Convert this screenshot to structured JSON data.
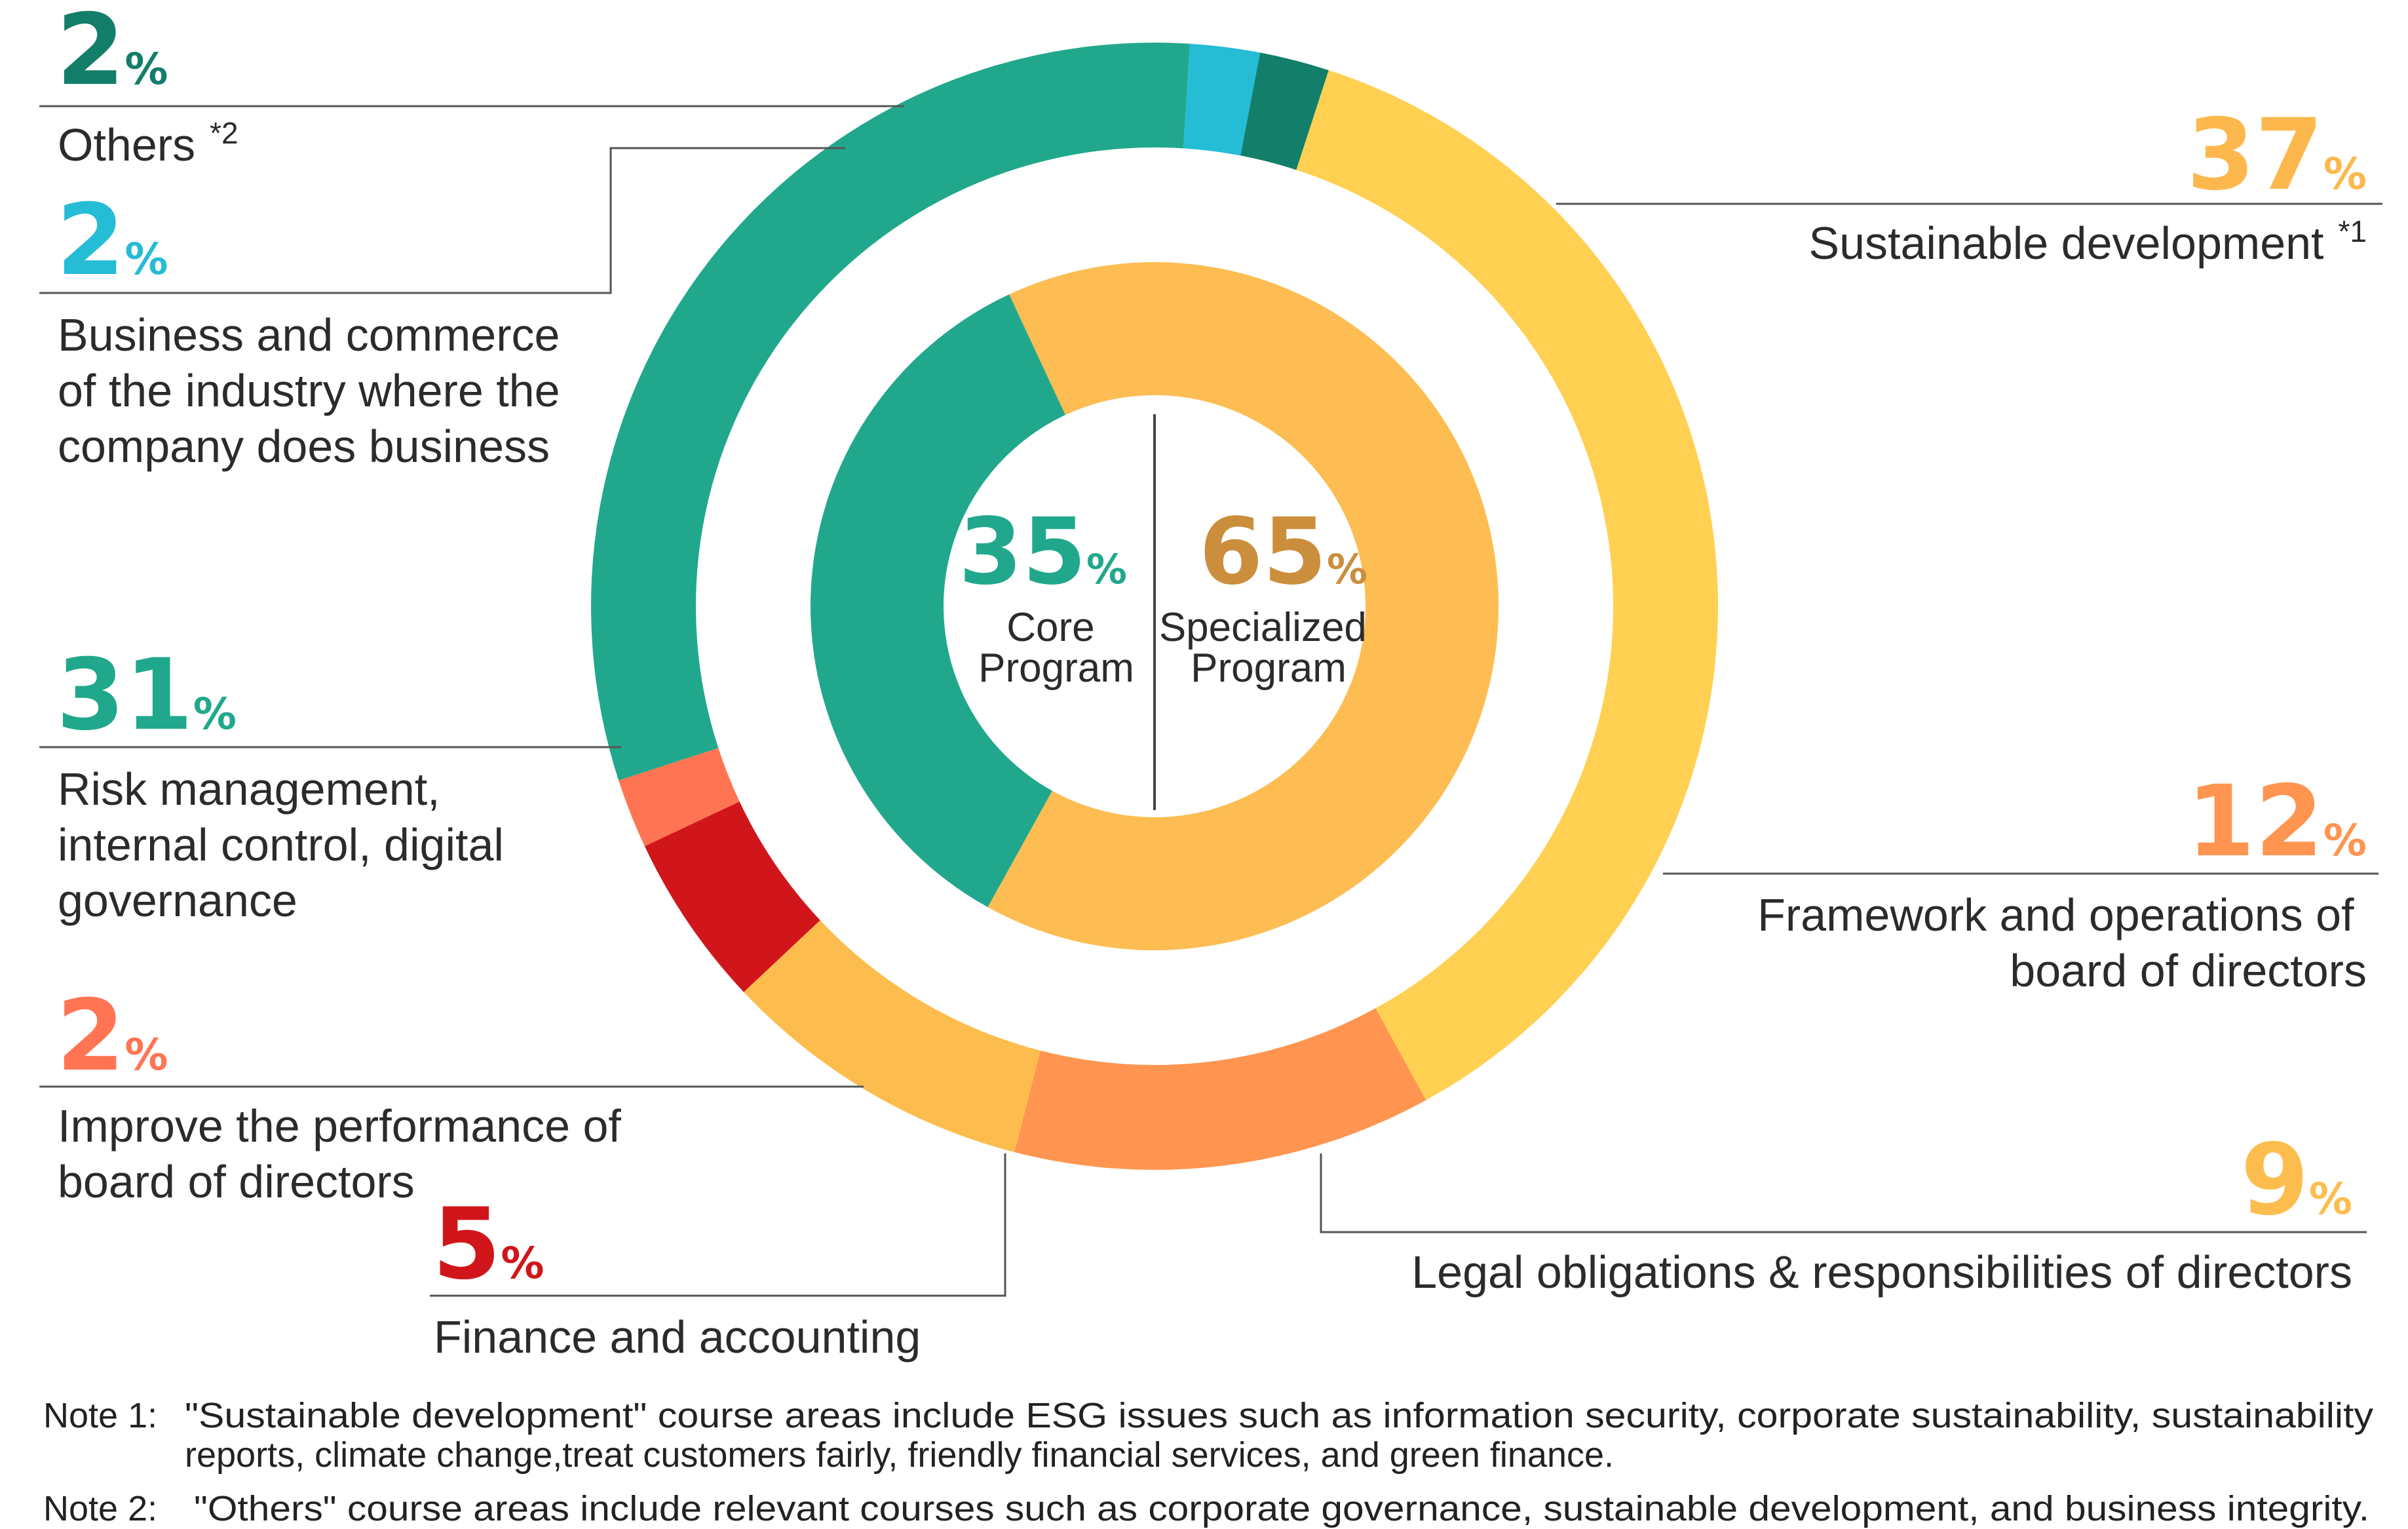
{
  "chart_data": {
    "type": "pie",
    "outer_ring": [
      {
        "id": "sustainable",
        "label": "Sustainable development",
        "note_mark": "*1",
        "value": 37,
        "unit": "%",
        "color": "#ffd052",
        "text_color": "#fdb84d"
      },
      {
        "id": "framework",
        "label_lines": [
          "Framework and operations of",
          "board of directors"
        ],
        "value": 12,
        "unit": "%",
        "color": "#ff9550",
        "text_color": "#ff9550"
      },
      {
        "id": "legal",
        "label": "Legal obligations & responsibilities of directors",
        "value": 9,
        "unit": "%",
        "color": "#fdbd4e",
        "text_color": "#fdbd4e"
      },
      {
        "id": "finance",
        "label": "Finance and accounting",
        "value": 5,
        "unit": "%",
        "color": "#d1161b",
        "text_color": "#d1161b"
      },
      {
        "id": "improve",
        "label_lines": [
          "Improve the performance of",
          "board of directors"
        ],
        "value": 2,
        "unit": "%",
        "color": "#ff7452",
        "text_color": "#ff7452"
      },
      {
        "id": "risk",
        "label_lines": [
          "Risk management,",
          "internal control, digital",
          "governance"
        ],
        "value": 31,
        "unit": "%",
        "color": "#21a88c",
        "text_color": "#21a88c"
      },
      {
        "id": "business",
        "label_lines": [
          "Business and commerce",
          "of the industry where the",
          "company does business"
        ],
        "value": 2,
        "unit": "%",
        "color": "#25bcd6",
        "text_color": "#25bcd6"
      },
      {
        "id": "others",
        "label": "Others",
        "note_mark": "*2",
        "value": 2,
        "unit": "%",
        "color": "#137e6a",
        "text_color": "#137e6a"
      }
    ],
    "inner_ring": [
      {
        "id": "specialized",
        "label_lines": [
          "Specialized",
          "Program"
        ],
        "value": 65,
        "unit": "%",
        "color": "#fdbd52",
        "text_color": "#cb8e3c"
      },
      {
        "id": "core",
        "label_lines": [
          "Core",
          "Program"
        ],
        "value": 35,
        "unit": "%",
        "color": "#21a88c",
        "text_color": "#21a88c"
      }
    ]
  },
  "notes": [
    {
      "label": "Note 1:",
      "lines": [
        "\"Sustainable development\" course areas include ESG issues such as information security, corporate sustainability, sustainability",
        "reports, climate change,treat customers fairly, friendly financial services, and green finance."
      ]
    },
    {
      "label": "Note 2:",
      "lines": [
        "\"Others\" course areas include relevant courses such as corporate governance, sustainable development, and business integrity."
      ]
    }
  ]
}
